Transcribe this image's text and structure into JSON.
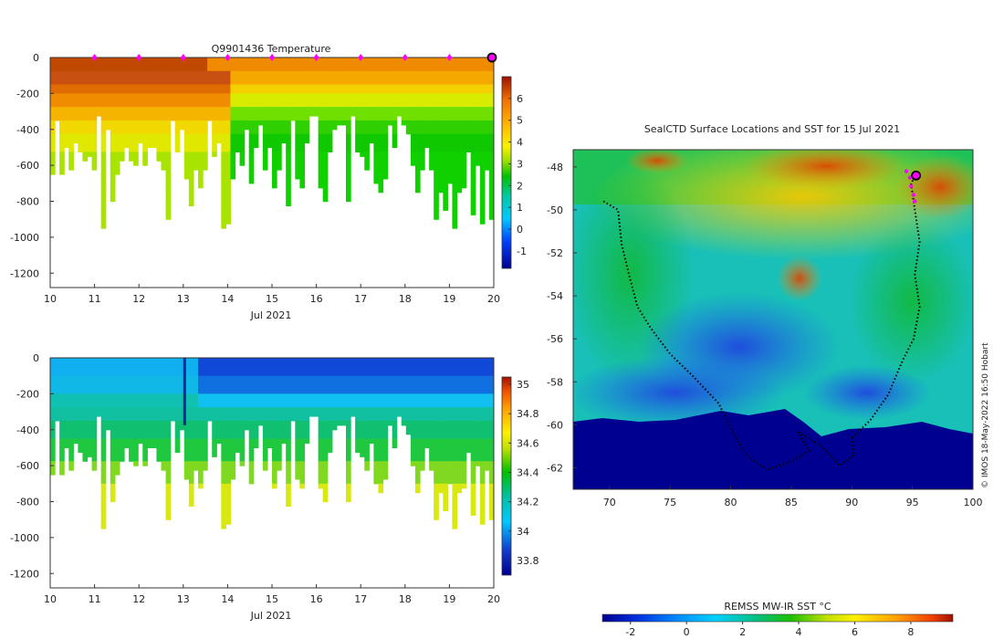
{
  "figure": {
    "credit": "© IMOS 18-May-2022 16:50 Hobart"
  },
  "chart_data": [
    {
      "type": "heatmap",
      "title": "Q9901436  Temperature",
      "xlabel": "Jul 2021",
      "ylabel": "",
      "xlim": [
        10,
        20
      ],
      "ylim": [
        -1280,
        0
      ],
      "x_ticks": [
        "10",
        "11",
        "12",
        "13",
        "14",
        "15",
        "16",
        "17",
        "18",
        "19",
        "20"
      ],
      "y_ticks": [
        "0",
        "-200",
        "-400",
        "-600",
        "-800",
        "-1000",
        "-1200"
      ],
      "colorbar": {
        "range": [
          -1.8,
          7
        ],
        "ticks": [
          "-1",
          "0",
          "1",
          "2",
          "3",
          "4",
          "5",
          "6"
        ]
      },
      "surface_markers_days": [
        11,
        12,
        13,
        14,
        15,
        16,
        17,
        18,
        19
      ],
      "current_marker_day": 20,
      "colors": {
        "marker": "#ff00ff",
        "current": "#ff00ff"
      }
    },
    {
      "type": "heatmap",
      "title": "",
      "xlabel": "Jul 2021",
      "ylabel": "",
      "xlim": [
        10,
        20
      ],
      "ylim": [
        -1280,
        0
      ],
      "x_ticks": [
        "10",
        "11",
        "12",
        "13",
        "14",
        "15",
        "16",
        "17",
        "18",
        "19",
        "20"
      ],
      "y_ticks": [
        "0",
        "-200",
        "-400",
        "-600",
        "-800",
        "-1000",
        "-1200"
      ],
      "colorbar": {
        "range": [
          33.7,
          35.05
        ],
        "ticks": [
          "33.8",
          "34",
          "34.2",
          "34.4",
          "34.6",
          "34.8",
          "35"
        ]
      }
    },
    {
      "type": "heatmap",
      "title": "SealCTD Surface Locations and SST for 15 Jul 2021",
      "xlabel": "",
      "ylabel": "",
      "xlim": [
        67,
        100
      ],
      "ylim": [
        -63,
        -47.2
      ],
      "x_ticks": [
        "70",
        "75",
        "80",
        "85",
        "90",
        "95",
        "100"
      ],
      "y_ticks": [
        "-48",
        "-50",
        "-52",
        "-54",
        "-56",
        "-58",
        "-60",
        "-62"
      ],
      "colorbar": {
        "label": "REMSS MW-IR SST °C",
        "range": [
          -3,
          9.5
        ],
        "ticks": [
          "-2",
          "0",
          "2",
          "4",
          "6",
          "8"
        ]
      },
      "tracks": [
        [
          [
            69.5,
            -49.6
          ],
          [
            70.7,
            -50.0
          ],
          [
            71.0,
            -51.6
          ],
          [
            71.6,
            -53.0
          ],
          [
            72.3,
            -54.5
          ],
          [
            73.4,
            -55.5
          ],
          [
            75.0,
            -56.7
          ],
          [
            77.0,
            -57.8
          ],
          [
            79.0,
            -59.0
          ],
          [
            80.6,
            -60.8
          ],
          [
            81.5,
            -61.5
          ],
          [
            83.0,
            -62.1
          ],
          [
            85.0,
            -61.7
          ],
          [
            86.5,
            -61.2
          ],
          [
            85.5,
            -60.3
          ],
          [
            87.5,
            -61.0
          ],
          [
            89.0,
            -61.9
          ],
          [
            90.2,
            -61.4
          ],
          [
            90.0,
            -60.6
          ]
        ],
        [
          [
            90.0,
            -60.6
          ],
          [
            91.5,
            -59.8
          ],
          [
            93.0,
            -58.6
          ],
          [
            94.2,
            -57.0
          ],
          [
            95.1,
            -56.0
          ],
          [
            95.6,
            -54.5
          ],
          [
            95.2,
            -53.0
          ],
          [
            95.6,
            -51.5
          ],
          [
            95.2,
            -50.0
          ],
          [
            94.9,
            -48.8
          ],
          [
            95.2,
            -48.4
          ]
        ]
      ],
      "recent_positions": [
        [
          94.5,
          -48.2
        ],
        [
          94.8,
          -48.5
        ],
        [
          94.9,
          -48.9
        ],
        [
          95.1,
          -49.3
        ],
        [
          95.2,
          -49.6
        ]
      ],
      "current_position": [
        95.3,
        -48.4
      ],
      "colors": {
        "track": "#000000",
        "recent": "#ff00ff"
      }
    }
  ]
}
